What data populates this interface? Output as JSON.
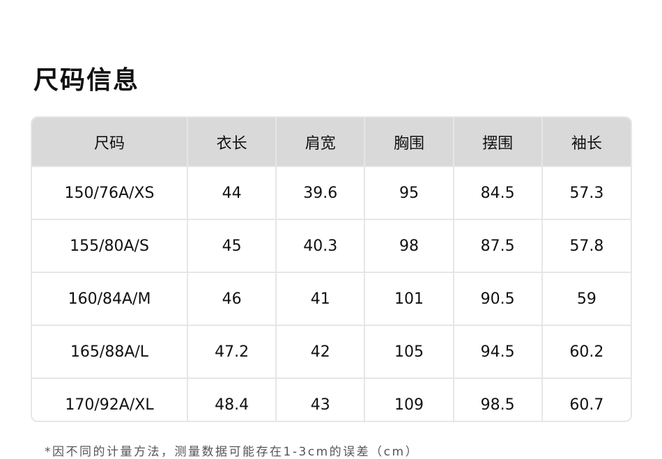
{
  "title": "尺码信息",
  "table": {
    "headers": [
      "尺码",
      "衣长",
      "肩宽",
      "胸围",
      "摆围",
      "袖长"
    ],
    "rows": [
      [
        "150/76A/XS",
        "44",
        "39.6",
        "95",
        "84.5",
        "57.3"
      ],
      [
        "155/80A/S",
        "45",
        "40.3",
        "98",
        "87.5",
        "57.8"
      ],
      [
        "160/84A/M",
        "46",
        "41",
        "101",
        "90.5",
        "59"
      ],
      [
        "165/88A/L",
        "47.2",
        "42",
        "105",
        "94.5",
        "60.2"
      ],
      [
        "170/92A/XL",
        "48.4",
        "43",
        "109",
        "98.5",
        "60.7"
      ]
    ]
  },
  "note": "*因不同的计量方法，测量数据可能存在1-3cm的误差（cm）"
}
